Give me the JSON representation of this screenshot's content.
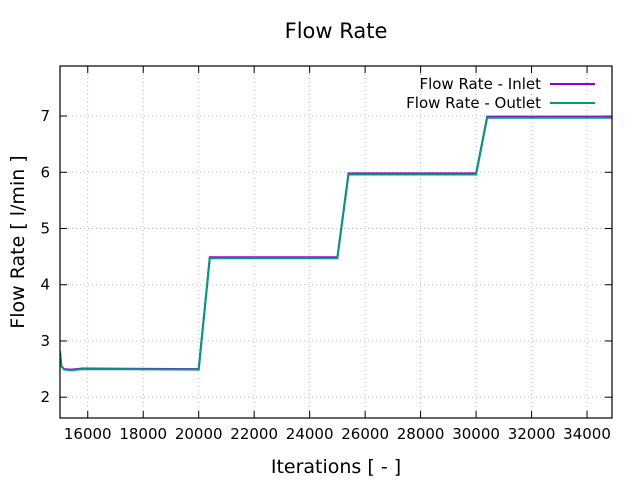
{
  "chart_data": {
    "type": "line",
    "title": "Flow Rate",
    "xlabel": "Iterations [ - ]",
    "ylabel": "Flow Rate [ l/min ]",
    "xlim": [
      15000,
      34900
    ],
    "ylim": [
      1.63,
      7.89
    ],
    "xticks": [
      16000,
      18000,
      20000,
      22000,
      24000,
      26000,
      28000,
      30000,
      32000,
      34000
    ],
    "yticks": [
      2,
      3,
      4,
      5,
      6,
      7
    ],
    "grid": true,
    "legend_position": "top-right",
    "series": [
      {
        "name": "Flow Rate - Inlet",
        "color": "#9400d3",
        "x": [
          15000,
          15050,
          15150,
          15400,
          15800,
          20000,
          20400,
          25000,
          25400,
          30000,
          30400,
          35000
        ],
        "y": [
          2.8,
          2.55,
          2.5,
          2.49,
          2.51,
          2.5,
          4.49,
          4.49,
          5.98,
          5.98,
          6.99,
          6.99
        ]
      },
      {
        "name": "Flow Rate - Outlet",
        "color": "#009e73",
        "x": [
          15000,
          15050,
          15150,
          15400,
          15800,
          20000,
          20400,
          25000,
          25400,
          30000,
          30400,
          35000
        ],
        "y": [
          2.82,
          2.55,
          2.49,
          2.48,
          2.5,
          2.49,
          4.47,
          4.47,
          5.96,
          5.96,
          6.97,
          6.97
        ]
      }
    ]
  }
}
